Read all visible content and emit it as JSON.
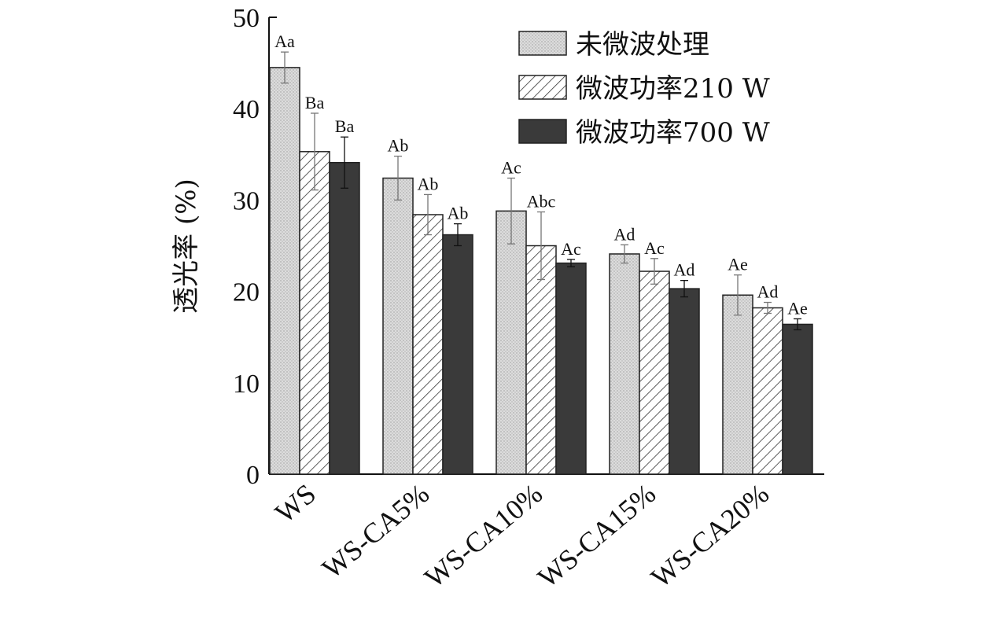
{
  "chart_data": {
    "type": "bar",
    "ylabel": "透光率 (%)",
    "xlabel": "",
    "ylim": [
      0,
      50
    ],
    "yticks": [
      0,
      10,
      20,
      30,
      40,
      50
    ],
    "categories": [
      "WS",
      "WS-CA5%",
      "WS-CA10%",
      "WS-CA15%",
      "WS-CA20%"
    ],
    "legend_position": "top-right",
    "series": [
      {
        "name": "未微波处理",
        "pattern": "dotted",
        "color": "#d9d9d9",
        "values": [
          44.5,
          32.4,
          28.8,
          24.1,
          19.6
        ],
        "errors": [
          1.7,
          2.4,
          3.6,
          1.0,
          2.2
        ],
        "labels": [
          "Aa",
          "Ab",
          "Ac",
          "Ad",
          "Ae"
        ]
      },
      {
        "name": "微波功率210 W",
        "pattern": "hatched",
        "color": "#ffffff",
        "values": [
          35.3,
          28.4,
          25.0,
          22.2,
          18.2
        ],
        "errors": [
          4.2,
          2.2,
          3.7,
          1.4,
          0.6
        ],
        "labels": [
          "Ba",
          "Ab",
          "Abc",
          "Ac",
          "Ad"
        ]
      },
      {
        "name": "微波功率700 W",
        "pattern": "solid",
        "color": "#3a3a3a",
        "values": [
          34.1,
          26.2,
          23.1,
          20.3,
          16.4
        ],
        "errors": [
          2.8,
          1.2,
          0.4,
          0.9,
          0.6
        ],
        "labels": [
          "Ba",
          "Ab",
          "Ac",
          "Ad",
          "Ae"
        ]
      }
    ]
  }
}
